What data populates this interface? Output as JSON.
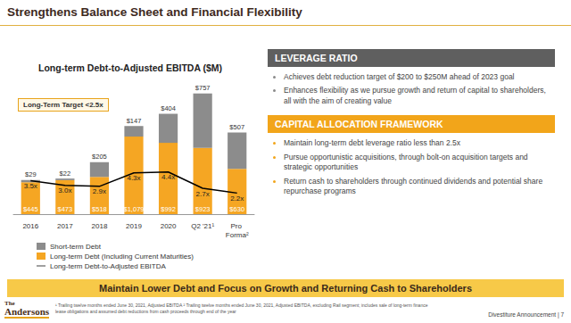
{
  "chart_data": {
    "type": "bar",
    "title": "Long-term Debt-to-Adjusted EBITDA ($M)",
    "annotation": "Long-Term Target <2.5x",
    "categories": [
      "2016",
      "2017",
      "2018",
      "2019",
      "2020",
      "Q2 '21¹",
      "Pro Forma²"
    ],
    "stacked": true,
    "data_labels": true,
    "tick_labels": "x",
    "grid": false,
    "legend": "bottom-left",
    "ylim": [
      0,
      1800
    ],
    "y2lim": [
      0,
      13.5
    ],
    "series": [
      {
        "name": "Short-term Debt",
        "type": "bar",
        "color": "#8c8c8c",
        "values": [
          29,
          22,
          205,
          147,
          404,
          757,
          507
        ],
        "value_labels": [
          "$29",
          "$22",
          "$205",
          "$147",
          "$404",
          "$757",
          "$507"
        ]
      },
      {
        "name": "Long-term Debt (Including Current Maturities)",
        "type": "bar",
        "color": "#f5a623",
        "values": [
          445,
          473,
          518,
          1079,
          992,
          923,
          630
        ],
        "value_labels": [
          "$445",
          "$473",
          "$518",
          "$1,079",
          "$992",
          "$923",
          "$630"
        ]
      },
      {
        "name": "Long-term Debt-to-Adjusted EBITDA",
        "type": "line",
        "color": "#000000",
        "axis": "y2",
        "values": [
          3.5,
          3.0,
          2.9,
          4.3,
          4.4,
          2.7,
          2.2
        ],
        "value_labels": [
          "3.5x",
          "3.0x",
          "2.9x",
          "4.3x",
          "4.4x",
          "2.7x",
          "2.2x"
        ]
      }
    ]
  },
  "slide": {
    "title": "Strengthens Balance Sheet and Financial Flexibility",
    "panels": [
      {
        "heading": "LEVERAGE RATIO",
        "bullets": [
          "Achieves debt reduction target of $200 to $250M ahead of 2023 goal",
          "Enhances flexibility as we pursue growth and return of capital to shareholders, all with the aim of creating value"
        ]
      },
      {
        "heading": "CAPITAL ALLOCATION FRAMEWORK",
        "bullets": [
          "Maintain long-term debt leverage ratio less than 2.5x",
          "Pursue opportunistic acquisitions, through bolt-on acquisition targets and strategic opportunities",
          "Return cash to shareholders through continued dividends and potential share repurchase programs"
        ]
      }
    ],
    "banner": "Maintain Lower Debt and Focus on Growth and Returning Cash to Shareholders",
    "logo": [
      "The",
      "Andersons"
    ],
    "footnote": "¹ Trailing twelve months ended June 30, 2021, Adjusted EBITDA ² Trailing twelve months ended June 30, 2021, Adjusted EBITDA, excluding Rail segment; includes sale of long-term finance lease obligations and assumed debt reductions from cash proceeds through end of the year",
    "footer": "Divestiture Announcement | 7"
  }
}
